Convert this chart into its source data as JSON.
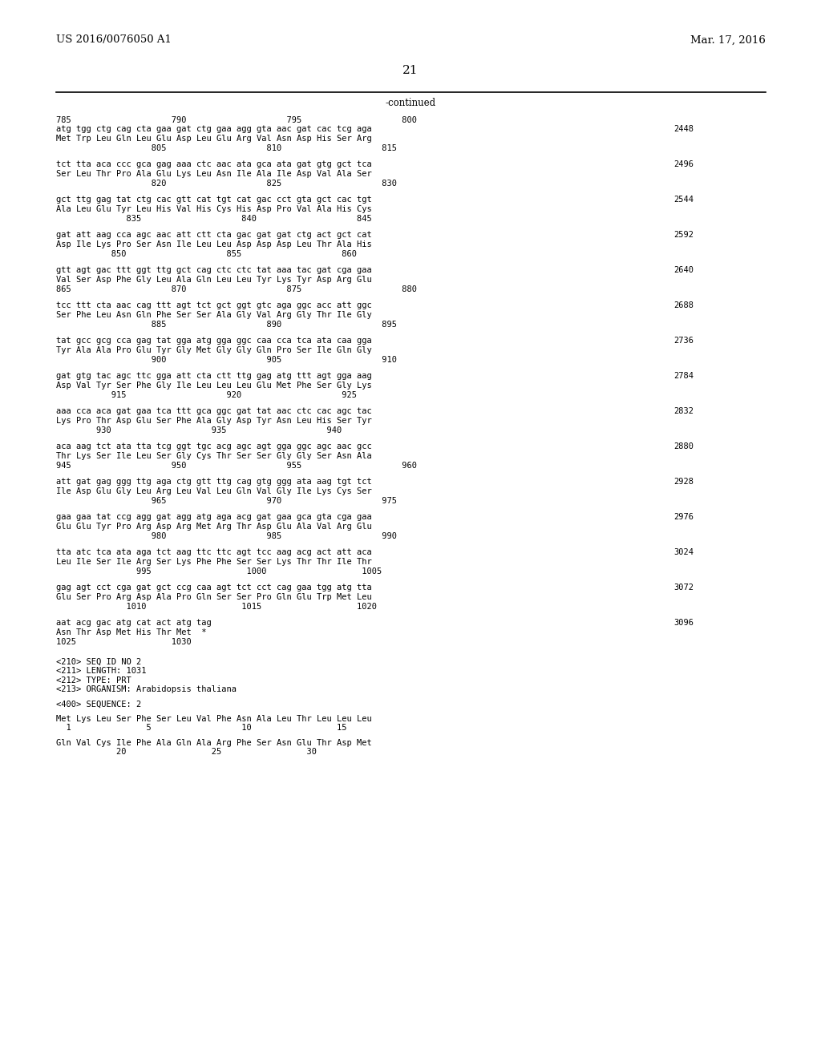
{
  "header_left": "US 2016/0076050 A1",
  "header_right": "Mar. 17, 2016",
  "page_number": "21",
  "continued_label": "-continued",
  "background_color": "#ffffff",
  "text_color": "#000000",
  "font_size_header": 9.5,
  "font_size_body": 7.5,
  "font_size_page": 11,
  "top_ruler": "785                    790                    795                    800",
  "sequence_blocks": [
    {
      "dna": "atg tgg ctg cag cta gaa gat ctg gaa agg gta aac gat cac tcg aga",
      "aa": "Met Trp Leu Gln Leu Glu Asp Leu Glu Arg Val Asn Asp His Ser Arg",
      "ruler2": "                   805                    810                    815",
      "num": "2448"
    },
    {
      "dna": "tct tta aca ccc gca gag aaa ctc aac ata gca ata gat gtg gct tca",
      "aa": "Ser Leu Thr Pro Ala Glu Lys Leu Asn Ile Ala Ile Asp Val Ala Ser",
      "ruler2": "                   820                    825                    830",
      "num": "2496"
    },
    {
      "dna": "gct ttg gag tat ctg cac gtt cat tgt cat gac cct gta gct cac tgt",
      "aa": "Ala Leu Glu Tyr Leu His Val His Cys His Asp Pro Val Ala His Cys",
      "ruler2": "              835                    840                    845",
      "num": "2544"
    },
    {
      "dna": "gat att aag cca agc aac att ctt cta gac gat gat ctg act gct cat",
      "aa": "Asp Ile Lys Pro Ser Asn Ile Leu Leu Asp Asp Asp Leu Thr Ala His",
      "ruler2": "           850                    855                    860",
      "num": "2592"
    },
    {
      "dna": "gtt agt gac ttt ggt ttg gct cag ctc ctc tat aaa tac gat cga gaa",
      "aa": "Val Ser Asp Phe Gly Leu Ala Gln Leu Leu Tyr Lys Tyr Asp Arg Glu",
      "ruler2": "865                    870                    875                    880",
      "num": "2640"
    },
    {
      "dna": "tcc ttt cta aac cag ttt agt tct gct ggt gtc aga ggc acc att ggc",
      "aa": "Ser Phe Leu Asn Gln Phe Ser Ser Ala Gly Val Arg Gly Thr Ile Gly",
      "ruler2": "                   885                    890                    895",
      "num": "2688"
    },
    {
      "dna": "tat gcc gcg cca gag tat gga atg gga ggc caa cca tca ata caa gga",
      "aa": "Tyr Ala Ala Pro Glu Tyr Gly Met Gly Gly Gln Pro Ser Ile Gln Gly",
      "ruler2": "                   900                    905                    910",
      "num": "2736"
    },
    {
      "dna": "gat gtg tac agc ttc gga att cta ctt ttg gag atg ttt agt gga aag",
      "aa": "Asp Val Tyr Ser Phe Gly Ile Leu Leu Leu Glu Met Phe Ser Gly Lys",
      "ruler2": "           915                    920                    925",
      "num": "2784"
    },
    {
      "dna": "aaa cca aca gat gaa tca ttt gca ggc gat tat aac ctc cac agc tac",
      "aa": "Lys Pro Thr Asp Glu Ser Phe Ala Gly Asp Tyr Asn Leu His Ser Tyr",
      "ruler2": "        930                    935                    940",
      "num": "2832"
    },
    {
      "dna": "aca aag tct ata tta tcg ggt tgc acg agc agt gga ggc agc aac gcc",
      "aa": "Thr Lys Ser Ile Leu Ser Gly Cys Thr Ser Ser Gly Gly Ser Asn Ala",
      "ruler2": "945                    950                    955                    960",
      "num": "2880"
    },
    {
      "dna": "att gat gag ggg ttg aga ctg gtt ttg cag gtg ggg ata aag tgt tct",
      "aa": "Ile Asp Glu Gly Leu Arg Leu Val Leu Gln Val Gly Ile Lys Cys Ser",
      "ruler2": "                   965                    970                    975",
      "num": "2928"
    },
    {
      "dna": "gaa gaa tat ccg agg gat agg atg aga acg gat gaa gca gta cga gaa",
      "aa": "Glu Glu Tyr Pro Arg Asp Arg Met Arg Thr Asp Glu Ala Val Arg Glu",
      "ruler2": "                   980                    985                    990",
      "num": "2976"
    },
    {
      "dna": "tta atc tca ata aga tct aag ttc ttc agt tcc aag acg act att aca",
      "aa": "Leu Ile Ser Ile Arg Ser Lys Phe Phe Ser Ser Lys Thr Thr Ile Thr",
      "ruler2": "                995                   1000                   1005",
      "num": "3024"
    },
    {
      "dna": "gag agt cct cga gat gct ccg caa agt tct cct cag gaa tgg atg tta",
      "aa": "Glu Ser Pro Arg Asp Ala Pro Gln Ser Ser Pro Gln Glu Trp Met Leu",
      "ruler2": "              1010                   1015                   1020",
      "num": "3072"
    },
    {
      "dna": "aat acg gac atg cat act atg tag",
      "aa": "Asn Thr Asp Met His Thr Met  *",
      "ruler2": "1025                   1030",
      "num": "3096"
    }
  ],
  "footer_lines": [
    "<210> SEQ ID NO 2",
    "<211> LENGTH: 1031",
    "<212> TYPE: PRT",
    "<213> ORGANISM: Arabidopsis thaliana",
    "",
    "<400> SEQUENCE: 2",
    "",
    "Met Lys Leu Ser Phe Ser Leu Val Phe Asn Ala Leu Thr Leu Leu Leu",
    "  1               5                  10                 15",
    "",
    "Gln Val Cys Ile Phe Ala Gln Ala Arg Phe Ser Asn Glu Thr Asp Met",
    "            20                 25                 30"
  ]
}
